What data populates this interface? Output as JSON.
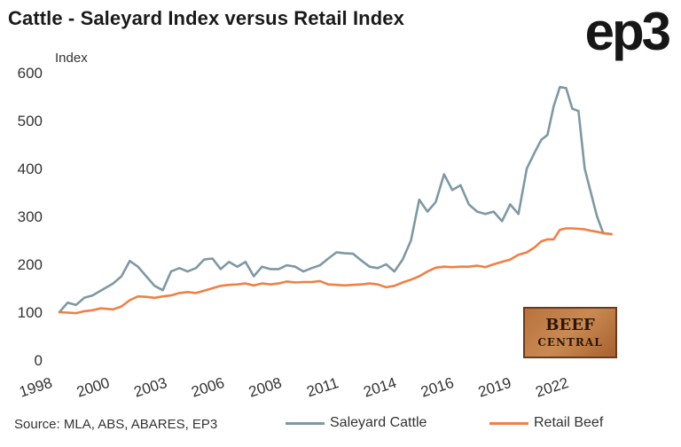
{
  "header": {
    "title": "Cattle - Saleyard Index versus Retail Index",
    "logo": "ep3"
  },
  "badge": {
    "line1": "BEEF",
    "line2": "CENTRAL"
  },
  "footer": {
    "source": "Source: MLA, ABS, ABARES, EP3"
  },
  "chart_data": {
    "type": "line",
    "ylabel": "Index",
    "ylim": [
      0,
      600
    ],
    "y_ticks": [
      0,
      100,
      200,
      300,
      400,
      500,
      600
    ],
    "x_range": [
      1998.0,
      2024.8
    ],
    "x_tick_labels": [
      "1998",
      "2000",
      "2003",
      "2006",
      "2008",
      "2011",
      "2014",
      "2016",
      "2019",
      "2022"
    ],
    "grid": false,
    "legend": "bottom",
    "series": [
      {
        "name": "Saleyard Cattle",
        "color": "#7f98a3",
        "x": [
          1998.0,
          1998.4,
          1998.8,
          1999.2,
          1999.6,
          2000.0,
          2000.6,
          2001.0,
          2001.4,
          2001.8,
          2002.2,
          2002.6,
          2003.0,
          2003.4,
          2003.8,
          2004.2,
          2004.6,
          2005.0,
          2005.4,
          2005.8,
          2006.2,
          2006.6,
          2007.0,
          2007.4,
          2007.8,
          2008.2,
          2008.6,
          2009.0,
          2009.4,
          2009.8,
          2010.2,
          2010.6,
          2011.0,
          2011.4,
          2011.8,
          2012.2,
          2012.6,
          2013.0,
          2013.4,
          2013.8,
          2014.2,
          2014.6,
          2015.0,
          2015.4,
          2015.8,
          2016.2,
          2016.6,
          2017.0,
          2017.4,
          2017.8,
          2018.2,
          2018.6,
          2019.0,
          2019.4,
          2019.8,
          2020.2,
          2020.6,
          2021.0,
          2021.3,
          2021.6,
          2021.9,
          2022.2,
          2022.5,
          2022.8,
          2023.1,
          2023.4,
          2023.7,
          2024.0,
          2024.3,
          2024.7
        ],
        "values": [
          100,
          120,
          115,
          130,
          135,
          145,
          160,
          175,
          207,
          195,
          175,
          155,
          146,
          185,
          192,
          185,
          192,
          210,
          212,
          190,
          205,
          195,
          205,
          175,
          195,
          190,
          190,
          198,
          195,
          185,
          192,
          198,
          212,
          225,
          223,
          222,
          208,
          195,
          192,
          200,
          185,
          210,
          250,
          335,
          310,
          330,
          388,
          355,
          365,
          325,
          310,
          305,
          310,
          290,
          325,
          305,
          400,
          435,
          460,
          470,
          530,
          570,
          568,
          525,
          520,
          400,
          350,
          300,
          265,
          263
        ]
      },
      {
        "name": "Retail Beef",
        "color": "#ef8046",
        "x": [
          1998.0,
          1998.4,
          1998.8,
          1999.2,
          1999.6,
          2000.0,
          2000.6,
          2001.0,
          2001.4,
          2001.8,
          2002.2,
          2002.6,
          2003.0,
          2003.4,
          2003.8,
          2004.2,
          2004.6,
          2005.0,
          2005.4,
          2005.8,
          2006.2,
          2006.6,
          2007.0,
          2007.4,
          2007.8,
          2008.2,
          2008.6,
          2009.0,
          2009.4,
          2009.8,
          2010.2,
          2010.6,
          2011.0,
          2011.4,
          2011.8,
          2012.2,
          2012.6,
          2013.0,
          2013.4,
          2013.8,
          2014.2,
          2014.6,
          2015.0,
          2015.4,
          2015.8,
          2016.2,
          2016.6,
          2017.0,
          2017.4,
          2017.8,
          2018.2,
          2018.6,
          2019.0,
          2019.4,
          2019.8,
          2020.2,
          2020.6,
          2021.0,
          2021.3,
          2021.6,
          2021.9,
          2022.2,
          2022.5,
          2022.8,
          2023.1,
          2023.4,
          2023.7,
          2024.0,
          2024.3,
          2024.7
        ],
        "values": [
          100,
          99,
          98,
          102,
          104,
          108,
          106,
          112,
          125,
          133,
          132,
          130,
          133,
          135,
          140,
          142,
          140,
          145,
          150,
          155,
          157,
          158,
          160,
          156,
          160,
          158,
          160,
          164,
          162,
          163,
          163,
          165,
          158,
          157,
          156,
          157,
          158,
          160,
          158,
          152,
          155,
          162,
          168,
          175,
          185,
          193,
          195,
          194,
          195,
          195,
          197,
          194,
          200,
          205,
          210,
          220,
          225,
          236,
          248,
          252,
          252,
          272,
          275,
          275,
          274,
          273,
          270,
          268,
          265,
          263
        ]
      }
    ]
  }
}
